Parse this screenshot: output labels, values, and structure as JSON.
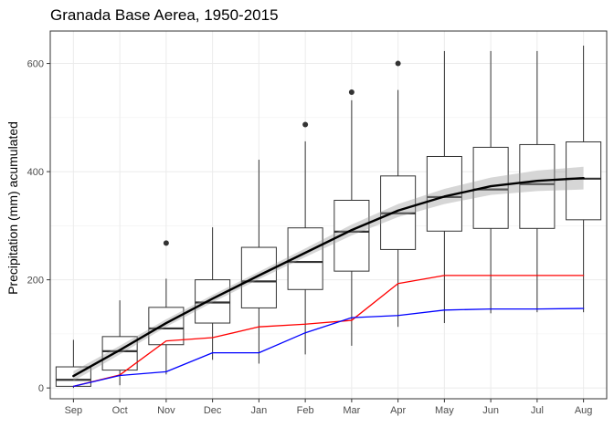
{
  "chart_data": {
    "type": "boxplot",
    "title": "Granada Base Aerea, 1950-2015",
    "xlabel": "",
    "ylabel": "Precipitation (mm) acumulated",
    "ylim": [
      -20,
      660
    ],
    "y_ticks": [
      0,
      200,
      400,
      600
    ],
    "grid": true,
    "categories": [
      "Sep",
      "Oct",
      "Nov",
      "Dec",
      "Jan",
      "Feb",
      "Mar",
      "Apr",
      "May",
      "Jun",
      "Jul",
      "Aug"
    ],
    "boxes": [
      {
        "whisker_low": 0,
        "q1": 3,
        "median": 15,
        "q3": 39,
        "whisker_high": 89,
        "outliers": []
      },
      {
        "whisker_low": 5,
        "q1": 33,
        "median": 68,
        "q3": 95,
        "whisker_high": 162,
        "outliers": []
      },
      {
        "whisker_low": 25,
        "q1": 80,
        "median": 110,
        "q3": 149,
        "whisker_high": 202,
        "outliers": [
          268
        ]
      },
      {
        "whisker_low": 52,
        "q1": 120,
        "median": 158,
        "q3": 200,
        "whisker_high": 297,
        "outliers": []
      },
      {
        "whisker_low": 45,
        "q1": 148,
        "median": 197,
        "q3": 260,
        "whisker_high": 422,
        "outliers": []
      },
      {
        "whisker_low": 62,
        "q1": 182,
        "median": 233,
        "q3": 296,
        "whisker_high": 456,
        "outliers": [
          487
        ]
      },
      {
        "whisker_low": 78,
        "q1": 216,
        "median": 289,
        "q3": 347,
        "whisker_high": 532,
        "outliers": [
          547
        ]
      },
      {
        "whisker_low": 113,
        "q1": 256,
        "median": 323,
        "q3": 392,
        "whisker_high": 551,
        "outliers": [
          600
        ]
      },
      {
        "whisker_low": 120,
        "q1": 290,
        "median": 353,
        "q3": 428,
        "whisker_high": 623,
        "outliers": []
      },
      {
        "whisker_low": 138,
        "q1": 295,
        "median": 367,
        "q3": 445,
        "whisker_high": 623,
        "outliers": []
      },
      {
        "whisker_low": 140,
        "q1": 295,
        "median": 377,
        "q3": 450,
        "whisker_high": 623,
        "outliers": []
      },
      {
        "whisker_low": 140,
        "q1": 311,
        "median": 387,
        "q3": 455,
        "whisker_high": 633,
        "outliers": []
      }
    ],
    "series": [
      {
        "type": "smooth",
        "color": "#000000",
        "values": [
          22,
          70,
          120,
          165,
          208,
          250,
          292,
          328,
          354,
          373,
          383,
          388
        ],
        "band_lower": [
          13,
          62,
          113,
          158,
          201,
          242,
          282,
          316,
          340,
          357,
          364,
          367
        ],
        "band_upper": [
          31,
          78,
          127,
          172,
          215,
          258,
          302,
          340,
          368,
          389,
          402,
          409
        ]
      },
      {
        "type": "line",
        "color": "#ff0000",
        "values": [
          3,
          24,
          87,
          93,
          113,
          118,
          125,
          193,
          208,
          208,
          208,
          208
        ]
      },
      {
        "type": "line",
        "color": "#0000ff",
        "values": [
          3,
          23,
          30,
          65,
          65,
          102,
          130,
          134,
          144,
          146,
          146,
          147
        ]
      }
    ]
  }
}
